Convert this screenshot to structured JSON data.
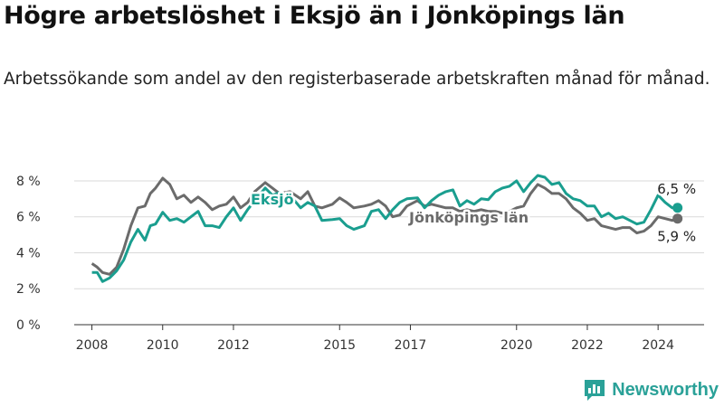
{
  "header": {
    "title": "Högre arbetslöshet i Eksjö än i Jönköpings län",
    "subtitle": "Arbetssökande som andel av den registerbaserade arbetskraften månad för månad."
  },
  "brand": {
    "name": "Newsworthy",
    "icon": "newsworthy-logo-icon"
  },
  "colors": {
    "eksjo": "#1a9e8f",
    "lan": "#6b6b6b",
    "grid": "#d9d9d9",
    "axis": "#333333"
  },
  "chart_data": {
    "type": "line",
    "title": "Högre arbetslöshet i Eksjö än i Jönköpings län",
    "xlabel": "",
    "ylabel": "",
    "xlim": [
      2007.5,
      2025.3
    ],
    "ylim": [
      0,
      8.5
    ],
    "x_ticks": [
      2008,
      2010,
      2012,
      2015,
      2017,
      2020,
      2022,
      2024
    ],
    "y_ticks": [
      0,
      2,
      4,
      6,
      8
    ],
    "y_tick_labels": [
      "0 %",
      "2 %",
      "4 %",
      "6 %",
      "8 %"
    ],
    "series": [
      {
        "name": "Eksjö",
        "label": "Eksjö",
        "end_label": "6,5 %",
        "points": [
          [
            2008.0,
            2.9
          ],
          [
            2008.15,
            2.9
          ],
          [
            2008.3,
            2.4
          ],
          [
            2008.5,
            2.6
          ],
          [
            2008.7,
            3.0
          ],
          [
            2008.9,
            3.6
          ],
          [
            2009.1,
            4.6
          ],
          [
            2009.3,
            5.3
          ],
          [
            2009.5,
            4.7
          ],
          [
            2009.65,
            5.5
          ],
          [
            2009.8,
            5.6
          ],
          [
            2010.0,
            6.25
          ],
          [
            2010.2,
            5.8
          ],
          [
            2010.4,
            5.9
          ],
          [
            2010.6,
            5.7
          ],
          [
            2010.8,
            6.0
          ],
          [
            2011.0,
            6.3
          ],
          [
            2011.2,
            5.5
          ],
          [
            2011.4,
            5.5
          ],
          [
            2011.6,
            5.4
          ],
          [
            2011.8,
            6.0
          ],
          [
            2012.0,
            6.5
          ],
          [
            2012.2,
            5.8
          ],
          [
            2012.4,
            6.4
          ],
          [
            2012.6,
            6.9
          ],
          [
            2012.9,
            7.6
          ],
          [
            2013.1,
            7.2
          ],
          [
            2013.3,
            7.35
          ],
          [
            2013.6,
            7.2
          ],
          [
            2013.9,
            6.5
          ],
          [
            2014.1,
            6.8
          ],
          [
            2014.3,
            6.6
          ],
          [
            2014.5,
            5.8
          ],
          [
            2014.8,
            5.85
          ],
          [
            2015.0,
            5.9
          ],
          [
            2015.2,
            5.5
          ],
          [
            2015.4,
            5.3
          ],
          [
            2015.7,
            5.5
          ],
          [
            2015.9,
            6.3
          ],
          [
            2016.1,
            6.4
          ],
          [
            2016.3,
            5.9
          ],
          [
            2016.5,
            6.4
          ],
          [
            2016.7,
            6.8
          ],
          [
            2016.9,
            7.0
          ],
          [
            2017.2,
            7.05
          ],
          [
            2017.4,
            6.5
          ],
          [
            2017.6,
            6.9
          ],
          [
            2017.8,
            7.2
          ],
          [
            2018.0,
            7.4
          ],
          [
            2018.2,
            7.5
          ],
          [
            2018.4,
            6.6
          ],
          [
            2018.6,
            6.9
          ],
          [
            2018.8,
            6.7
          ],
          [
            2019.0,
            7.0
          ],
          [
            2019.2,
            6.95
          ],
          [
            2019.4,
            7.4
          ],
          [
            2019.6,
            7.6
          ],
          [
            2019.8,
            7.7
          ],
          [
            2020.0,
            8.0
          ],
          [
            2020.2,
            7.4
          ],
          [
            2020.4,
            7.9
          ],
          [
            2020.6,
            8.3
          ],
          [
            2020.8,
            8.2
          ],
          [
            2021.0,
            7.8
          ],
          [
            2021.2,
            7.9
          ],
          [
            2021.4,
            7.3
          ],
          [
            2021.6,
            7.0
          ],
          [
            2021.8,
            6.9
          ],
          [
            2022.0,
            6.6
          ],
          [
            2022.2,
            6.6
          ],
          [
            2022.4,
            6.0
          ],
          [
            2022.6,
            6.2
          ],
          [
            2022.8,
            5.9
          ],
          [
            2023.0,
            6.0
          ],
          [
            2023.2,
            5.8
          ],
          [
            2023.4,
            5.6
          ],
          [
            2023.6,
            5.7
          ],
          [
            2023.8,
            6.4
          ],
          [
            2024.0,
            7.2
          ],
          [
            2024.2,
            6.8
          ],
          [
            2024.4,
            6.5
          ],
          [
            2024.55,
            6.5
          ]
        ]
      },
      {
        "name": "Jönköpings län",
        "label": "Jönköpings län",
        "end_label": "5,9 %",
        "points": [
          [
            2008.0,
            3.4
          ],
          [
            2008.15,
            3.2
          ],
          [
            2008.3,
            2.9
          ],
          [
            2008.5,
            2.8
          ],
          [
            2008.7,
            3.2
          ],
          [
            2008.9,
            4.2
          ],
          [
            2009.1,
            5.5
          ],
          [
            2009.3,
            6.5
          ],
          [
            2009.5,
            6.6
          ],
          [
            2009.65,
            7.3
          ],
          [
            2009.8,
            7.6
          ],
          [
            2010.0,
            8.15
          ],
          [
            2010.2,
            7.8
          ],
          [
            2010.4,
            7.0
          ],
          [
            2010.6,
            7.2
          ],
          [
            2010.8,
            6.8
          ],
          [
            2011.0,
            7.1
          ],
          [
            2011.2,
            6.8
          ],
          [
            2011.4,
            6.4
          ],
          [
            2011.6,
            6.6
          ],
          [
            2011.8,
            6.7
          ],
          [
            2012.0,
            7.1
          ],
          [
            2012.2,
            6.5
          ],
          [
            2012.4,
            6.8
          ],
          [
            2012.6,
            7.4
          ],
          [
            2012.9,
            7.9
          ],
          [
            2013.1,
            7.6
          ],
          [
            2013.3,
            7.3
          ],
          [
            2013.6,
            7.4
          ],
          [
            2013.9,
            7.0
          ],
          [
            2014.1,
            7.4
          ],
          [
            2014.3,
            6.6
          ],
          [
            2014.5,
            6.5
          ],
          [
            2014.8,
            6.7
          ],
          [
            2015.0,
            7.05
          ],
          [
            2015.2,
            6.8
          ],
          [
            2015.4,
            6.5
          ],
          [
            2015.7,
            6.6
          ],
          [
            2015.9,
            6.7
          ],
          [
            2016.1,
            6.9
          ],
          [
            2016.3,
            6.6
          ],
          [
            2016.5,
            6.0
          ],
          [
            2016.7,
            6.1
          ],
          [
            2016.9,
            6.6
          ],
          [
            2017.2,
            6.9
          ],
          [
            2017.4,
            6.6
          ],
          [
            2017.6,
            6.7
          ],
          [
            2017.8,
            6.6
          ],
          [
            2018.0,
            6.5
          ],
          [
            2018.2,
            6.5
          ],
          [
            2018.4,
            6.3
          ],
          [
            2018.6,
            6.4
          ],
          [
            2018.8,
            6.3
          ],
          [
            2019.0,
            6.4
          ],
          [
            2019.2,
            6.3
          ],
          [
            2019.4,
            6.3
          ],
          [
            2019.6,
            6.2
          ],
          [
            2019.8,
            6.3
          ],
          [
            2020.0,
            6.5
          ],
          [
            2020.2,
            6.6
          ],
          [
            2020.4,
            7.3
          ],
          [
            2020.6,
            7.8
          ],
          [
            2020.8,
            7.6
          ],
          [
            2021.0,
            7.3
          ],
          [
            2021.2,
            7.3
          ],
          [
            2021.4,
            7.0
          ],
          [
            2021.6,
            6.5
          ],
          [
            2021.8,
            6.2
          ],
          [
            2022.0,
            5.8
          ],
          [
            2022.2,
            5.9
          ],
          [
            2022.4,
            5.5
          ],
          [
            2022.6,
            5.4
          ],
          [
            2022.8,
            5.3
          ],
          [
            2023.0,
            5.4
          ],
          [
            2023.2,
            5.4
          ],
          [
            2023.4,
            5.1
          ],
          [
            2023.6,
            5.2
          ],
          [
            2023.8,
            5.5
          ],
          [
            2024.0,
            6.0
          ],
          [
            2024.2,
            5.9
          ],
          [
            2024.4,
            5.8
          ],
          [
            2024.55,
            5.9
          ]
        ]
      }
    ]
  }
}
